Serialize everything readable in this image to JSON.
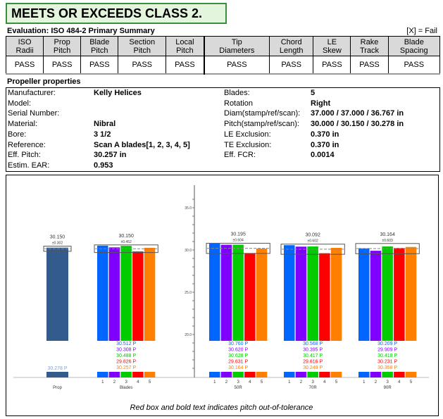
{
  "title": "MEETS OR EXCEEDS CLASS 2.",
  "evaluation": {
    "title": "Evaluation: ISO 484-2 Primary Summary",
    "legend": "[X] = Fail",
    "columns": [
      [
        "ISO",
        "Radii"
      ],
      [
        "Prop",
        "Pitch"
      ],
      [
        "Blade",
        "Pitch"
      ],
      [
        "Section",
        "Pitch"
      ],
      [
        "Local",
        "Pitch"
      ],
      [
        "Tip",
        "Diameters"
      ],
      [
        "Chord",
        "Length"
      ],
      [
        "LE",
        "Skew"
      ],
      [
        "Rake",
        "Track"
      ],
      [
        "Blade",
        "Spacing"
      ]
    ],
    "results": [
      "PASS",
      "PASS",
      "PASS",
      "PASS",
      "PASS",
      "PASS",
      "PASS",
      "PASS",
      "PASS",
      "PASS"
    ]
  },
  "properties": {
    "title": "Propeller properties",
    "left": [
      [
        "Manufacturer:",
        "Kelly Helices"
      ],
      [
        "Model:",
        ""
      ],
      [
        "Serial Number:",
        ""
      ],
      [
        "Material:",
        "Nibral"
      ],
      [
        "Bore:",
        "3 1/2"
      ],
      [
        "Reference:",
        "Scan A blades[1, 2, 3, 4, 5]"
      ],
      [
        "Eff. Pitch:",
        "30.257 in"
      ],
      [
        "Estim. EAR:",
        "0.953"
      ]
    ],
    "right": [
      [
        "Blades:",
        "5"
      ],
      [
        "Rotation",
        "Right"
      ],
      [
        "Diam(stamp/ref/scan):",
        "37.000 / 37.000 / 36.767 in"
      ],
      [
        "Pitch(stamp/ref/scan):",
        "30.000 / 30.150 / 30.278 in"
      ],
      [
        "LE Exclusion:",
        "0.370 in"
      ],
      [
        "TE Exclusion:",
        "0.370 in"
      ],
      [
        "Eff. FCR:",
        "0.0014"
      ]
    ]
  },
  "chart_data": {
    "type": "bar",
    "ylim": [
      15,
      37
    ],
    "yticks": [
      "35.0",
      "30.0",
      "25.0",
      "20.0"
    ],
    "ytick_values": [
      35,
      30,
      25,
      20
    ],
    "blade_colors": [
      "#0066ff",
      "#8000ff",
      "#00cc00",
      "#ff0000",
      "#ff8000"
    ],
    "prop_color": "#335b8c",
    "groups": [
      {
        "label": "Prop",
        "mean": "30.150",
        "tol": "±0.302",
        "tol_value": 0.302,
        "ref": 30.15,
        "values": [
          30.278
        ],
        "labels": [
          "30.278 P"
        ],
        "indices": []
      },
      {
        "label": "Blades",
        "mean": "30.150",
        "tol": "±0.452",
        "tol_value": 0.452,
        "ref": 30.15,
        "values": [
          30.512,
          30.308,
          30.488,
          29.826,
          30.257
        ],
        "labels": [
          "30.512 P",
          "30.308 P",
          "30.488 P",
          "29.826 P",
          "30.257 P"
        ],
        "indices": [
          "1",
          "2",
          "3",
          "4",
          "5"
        ]
      },
      {
        "label": "50R",
        "mean": "30.195",
        "tol": "±0.604",
        "tol_value": 0.604,
        "ref": 30.195,
        "values": [
          30.76,
          30.62,
          30.628,
          29.631,
          30.164
        ],
        "labels": [
          "30.760 P",
          "30.620 P",
          "30.628 P",
          "29.631 P",
          "30.164 P"
        ],
        "indices": [
          "1",
          "2",
          "3",
          "4",
          "5"
        ]
      },
      {
        "label": "70R",
        "mean": "30.092",
        "tol": "±0.602",
        "tol_value": 0.602,
        "ref": 30.092,
        "values": [
          30.568,
          30.395,
          30.417,
          29.616,
          30.249
        ],
        "labels": [
          "30.568 P",
          "30.395 P",
          "30.417 P",
          "29.616 P",
          "30.249 P"
        ],
        "indices": [
          "1",
          "2",
          "3",
          "4",
          "5"
        ]
      },
      {
        "label": "90R",
        "mean": "30.164",
        "tol": "±0.603",
        "tol_value": 0.603,
        "ref": 30.164,
        "values": [
          30.209,
          29.909,
          30.418,
          30.231,
          30.358
        ],
        "labels": [
          "30.209 P",
          "29.909 P",
          "30.418 P",
          "30.231 P",
          "30.358 P"
        ],
        "indices": [
          "1",
          "2",
          "3",
          "4",
          "5"
        ]
      }
    ]
  },
  "caption": "Red box and bold text indicates pitch out-of-tolerance"
}
